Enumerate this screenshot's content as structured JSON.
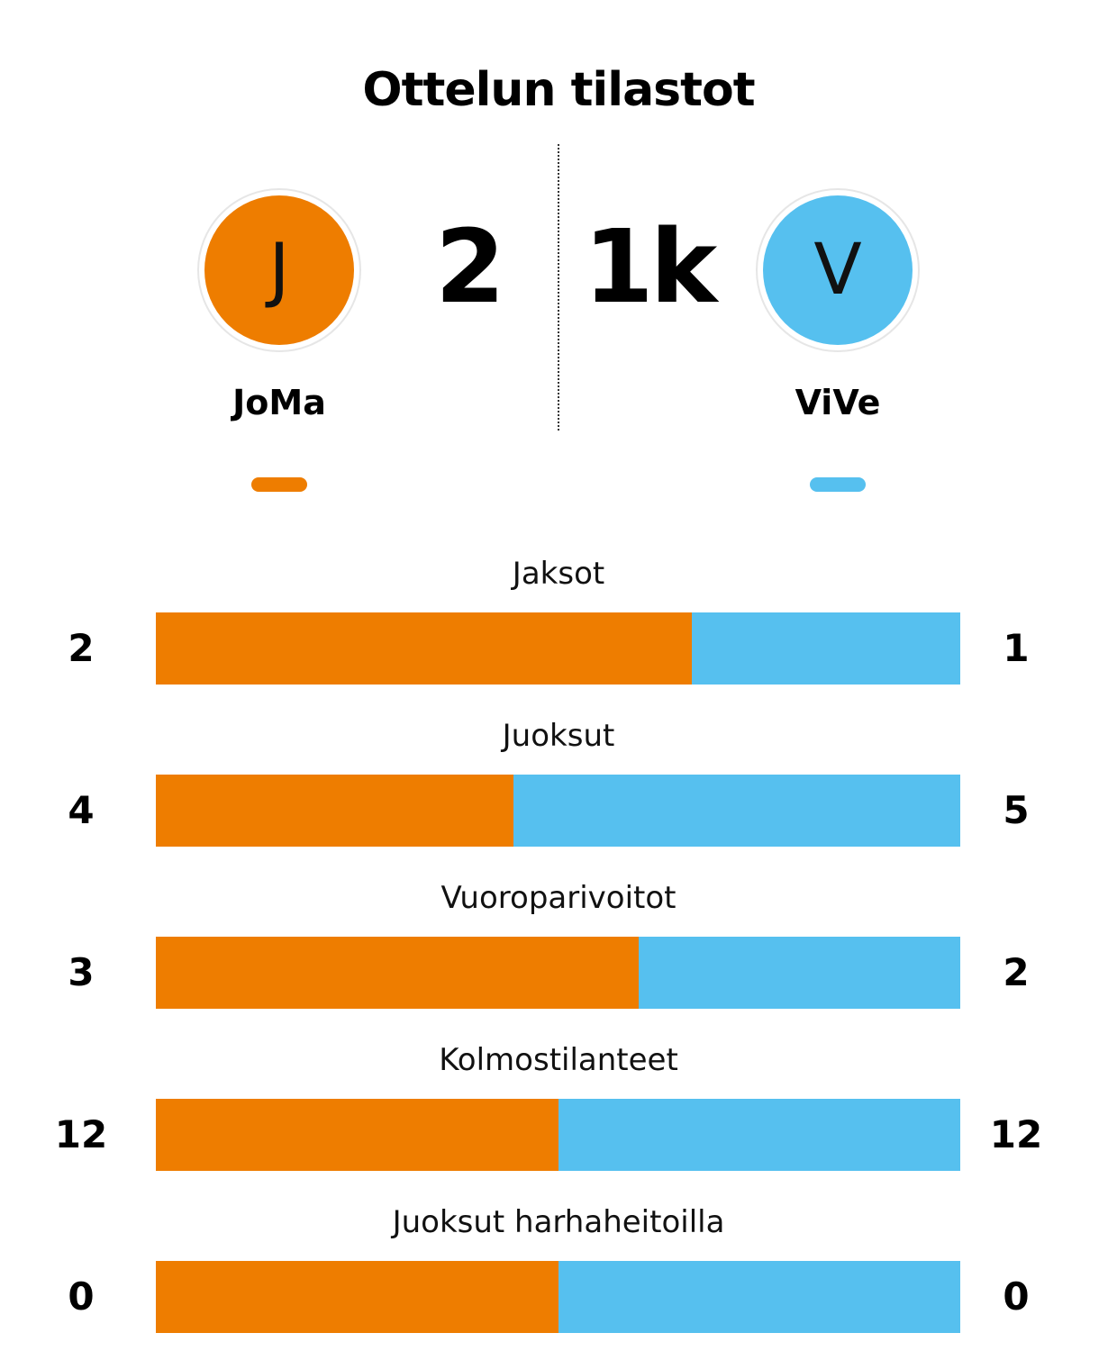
{
  "title": "Ottelun tilastot",
  "colors": {
    "home": "#EE7D00",
    "away": "#56C0EF"
  },
  "home": {
    "initial": "J",
    "name": "JoMa",
    "score": "2"
  },
  "away": {
    "initial": "V",
    "name": "ViVe",
    "score": "1k"
  },
  "stats": [
    {
      "label": "Jaksot",
      "home": 2,
      "away": 1
    },
    {
      "label": "Juoksut",
      "home": 4,
      "away": 5
    },
    {
      "label": "Vuoroparivoitot",
      "home": 3,
      "away": 2
    },
    {
      "label": "Kolmostilanteet",
      "home": 12,
      "away": 12
    },
    {
      "label": "Juoksut harhaheitoilla",
      "home": 0,
      "away": 0
    }
  ]
}
